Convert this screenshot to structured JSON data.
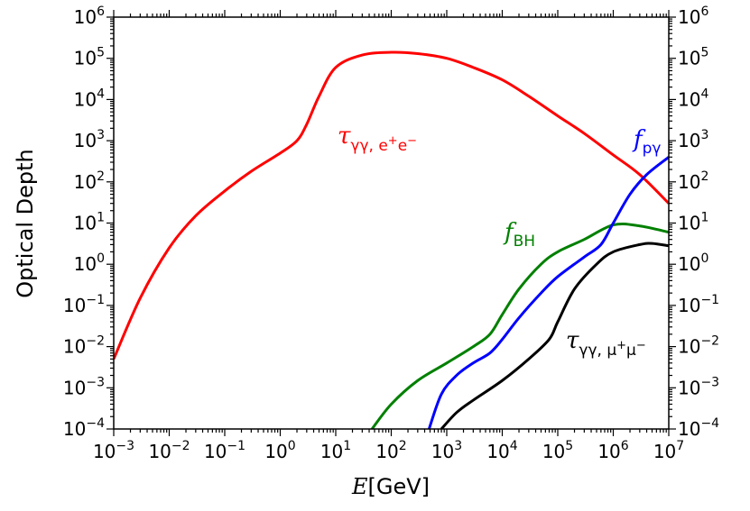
{
  "chart_data": {
    "type": "line",
    "xlabel_italic": "E",
    "xlabel_rest": "[GeV]",
    "ylabel": "Optical Depth",
    "x_scale": "log",
    "y_scale": "log",
    "xlim": [
      0.001,
      10000000
    ],
    "ylim": [
      0.0001,
      1000000
    ],
    "grid": false,
    "x_tick_exponents": [
      "-3",
      "-2",
      "-1",
      "0",
      "1",
      "2",
      "3",
      "4",
      "5",
      "6",
      "7"
    ],
    "y_tick_exponents": [
      "-4",
      "-3",
      "-2",
      "-1",
      "0",
      "1",
      "2",
      "3",
      "4",
      "5",
      "6"
    ],
    "tick_base": "10",
    "series": [
      {
        "key": "tau_ee",
        "color": "#ff0000",
        "label_main": "τ",
        "label_sub": "γγ, e",
        "label_sup1": "+",
        "label_e2": "e",
        "label_sup2": "−",
        "x": [
          0.001,
          0.003,
          0.01,
          0.03,
          0.1,
          0.3,
          1,
          2,
          3,
          5,
          10,
          30,
          100,
          300,
          1000,
          3000,
          10000,
          30000,
          100000,
          300000,
          1000000,
          3000000,
          10000000
        ],
        "y": [
          0.005,
          0.15,
          2.5,
          15,
          60,
          180,
          500,
          1000,
          2500,
          12000,
          60000,
          120000,
          140000,
          130000,
          100000,
          60000,
          30000,
          12000,
          4000,
          1500,
          450,
          150,
          30
        ]
      },
      {
        "key": "f_BH",
        "color": "#008000",
        "label_main": "f",
        "label_sub": "BH",
        "x": [
          45,
          100,
          300,
          1000,
          3000,
          6000,
          10000,
          20000,
          50000,
          100000,
          300000,
          1000000,
          3000000,
          10000000
        ],
        "y": [
          0.0001,
          0.0004,
          0.0015,
          0.004,
          0.01,
          0.02,
          0.06,
          0.25,
          1,
          2,
          4,
          9,
          8.5,
          6
        ]
      },
      {
        "key": "f_pg",
        "color": "#0000ff",
        "label_main": "f",
        "label_sub": "pγ",
        "x": [
          480,
          800,
          1500,
          3000,
          6000,
          10000,
          20000,
          50000,
          100000,
          300000,
          600000,
          1000000,
          2000000,
          4000000,
          10000000
        ],
        "y": [
          0.0001,
          0.0007,
          0.002,
          0.004,
          0.007,
          0.015,
          0.05,
          0.2,
          0.5,
          1.5,
          3,
          10,
          50,
          150,
          400
        ]
      },
      {
        "key": "tau_mumu",
        "color": "#000000",
        "label_main": "τ",
        "label_sub": "γγ, μ",
        "label_sup1": "+",
        "label_e2": "μ",
        "label_sup2": "−",
        "x": [
          800,
          1500,
          3000,
          10000,
          30000,
          70000,
          100000,
          200000,
          500000,
          1000000,
          3000000,
          5000000,
          10000000
        ],
        "y": [
          0.0001,
          0.00025,
          0.0005,
          0.0015,
          0.005,
          0.015,
          0.04,
          0.25,
          1,
          2,
          3,
          3.2,
          2.8
        ]
      }
    ]
  }
}
